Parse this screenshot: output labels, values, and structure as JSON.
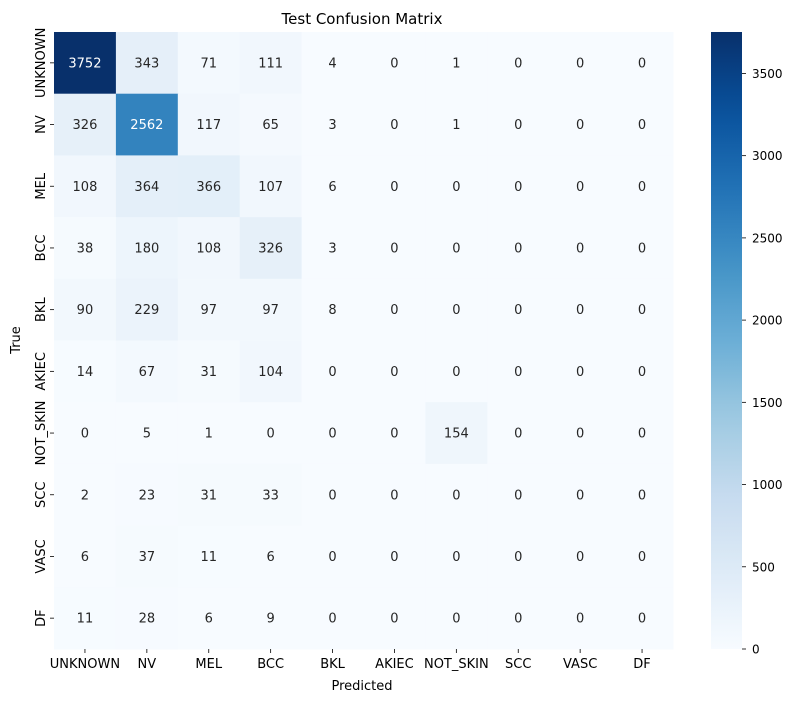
{
  "chart_data": {
    "type": "heatmap",
    "title": "Test Confusion Matrix",
    "xlabel": "Predicted",
    "ylabel": "True",
    "x_categories": [
      "UNKNOWN",
      "NV",
      "MEL",
      "BCC",
      "BKL",
      "AKIEC",
      "NOT_SKIN",
      "SCC",
      "VASC",
      "DF"
    ],
    "y_categories": [
      "UNKNOWN",
      "NV",
      "MEL",
      "BCC",
      "BKL",
      "AKIEC",
      "NOT_SKIN",
      "SCC",
      "VASC",
      "DF"
    ],
    "values": [
      [
        3752,
        343,
        71,
        111,
        4,
        0,
        1,
        0,
        0,
        0
      ],
      [
        326,
        2562,
        117,
        65,
        3,
        0,
        1,
        0,
        0,
        0
      ],
      [
        108,
        364,
        366,
        107,
        6,
        0,
        0,
        0,
        0,
        0
      ],
      [
        38,
        180,
        108,
        326,
        3,
        0,
        0,
        0,
        0,
        0
      ],
      [
        90,
        229,
        97,
        97,
        8,
        0,
        0,
        0,
        0,
        0
      ],
      [
        14,
        67,
        31,
        104,
        0,
        0,
        0,
        0,
        0,
        0
      ],
      [
        0,
        5,
        1,
        0,
        0,
        0,
        154,
        0,
        0,
        0
      ],
      [
        2,
        23,
        31,
        33,
        0,
        0,
        0,
        0,
        0,
        0
      ],
      [
        6,
        37,
        11,
        6,
        0,
        0,
        0,
        0,
        0,
        0
      ],
      [
        11,
        28,
        6,
        9,
        0,
        0,
        0,
        0,
        0,
        0
      ]
    ],
    "colormap": "Blues",
    "vmin": 0,
    "vmax": 3752,
    "colorbar_ticks": [
      0,
      500,
      1000,
      1500,
      2000,
      2500,
      3000,
      3500
    ],
    "annotate": true,
    "grid": false
  }
}
